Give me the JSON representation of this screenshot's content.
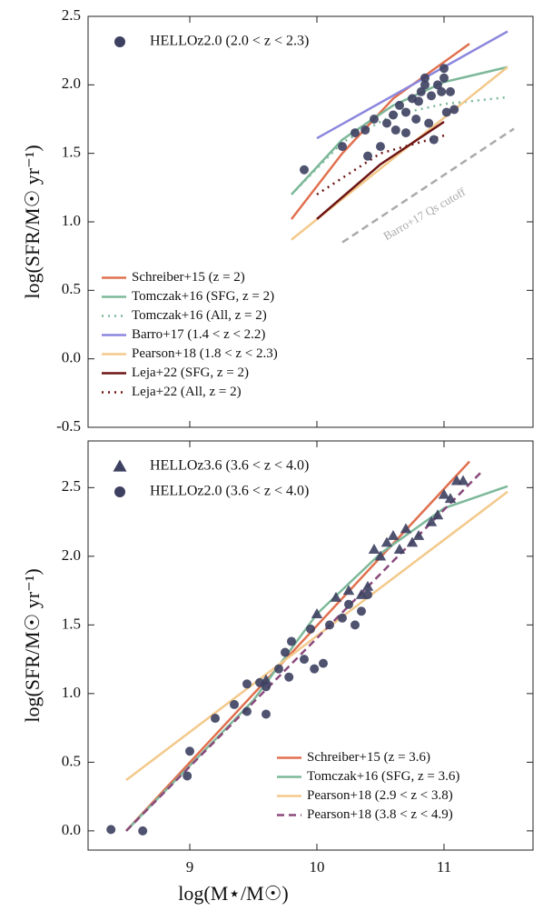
{
  "chart_data": [
    {
      "type": "line",
      "ylabel": "log(SFR/M☉ yr⁻¹)",
      "xlim": [
        8.2,
        11.7
      ],
      "ylim": [
        -0.5,
        2.5
      ],
      "xticks": [
        9,
        10,
        11
      ],
      "yticks": [
        -0.5,
        {
          "value": 0,
          "label": "0.0"
        },
        0.5,
        {
          "value": 1,
          "label": "1.0"
        },
        1.5,
        {
          "value": 2,
          "label": "2.0"
        },
        2.5
      ],
      "annotation": "Barro+17 Qs cutoff",
      "series": [
        {
          "name": "HELLOz2.0 (2.0 < z < 2.3)",
          "type": "scatter",
          "marker": "circle",
          "color": "#3d4060",
          "legend_loc": "upper left",
          "x": [
            9.9,
            10.2,
            10.3,
            10.38,
            10.45,
            10.5,
            10.55,
            10.6,
            10.62,
            10.65,
            10.7,
            10.75,
            10.78,
            10.8,
            10.82,
            10.85,
            10.88,
            10.9,
            10.92,
            10.95,
            10.98,
            11.0,
            11.02,
            11.05,
            11.08,
            10.7,
            10.4,
            10.85,
            11.0
          ],
          "values": [
            1.38,
            1.55,
            1.65,
            1.67,
            1.75,
            1.55,
            1.72,
            1.78,
            1.67,
            1.85,
            1.8,
            1.9,
            1.75,
            1.88,
            1.95,
            2.0,
            1.72,
            1.92,
            1.6,
            2.0,
            1.95,
            2.05,
            1.8,
            1.95,
            1.82,
            1.65,
            1.48,
            2.05,
            2.12
          ]
        },
        {
          "name": "Schreiber+15 (z = 2)",
          "type": "line",
          "linestyle": "solid",
          "color": "#e0704f",
          "legend_loc": "lower left",
          "x": [
            9.8,
            10.2,
            10.6,
            11.2
          ],
          "values": [
            1.02,
            1.5,
            1.9,
            2.3
          ]
        },
        {
          "name": "Tomczak+16 (SFG, z = 2)",
          "type": "line",
          "linestyle": "solid",
          "color": "#7cb899",
          "legend_loc": "lower left",
          "x": [
            9.8,
            10.2,
            10.6,
            11.0,
            11.5
          ],
          "values": [
            1.2,
            1.6,
            1.85,
            2.02,
            2.13
          ]
        },
        {
          "name": "Tomczak+16 (All, z = 2)",
          "type": "line",
          "linestyle": "dotted",
          "color": "#7cb899",
          "legend_loc": "lower left",
          "x": [
            9.8,
            10.2,
            10.6,
            11.0,
            11.5
          ],
          "values": [
            1.2,
            1.58,
            1.78,
            1.86,
            1.91
          ]
        },
        {
          "name": "Barro+17 (1.4 < z < 2.2)",
          "type": "line",
          "linestyle": "solid",
          "color": "#8b86dd",
          "legend_loc": "lower left",
          "x": [
            10.0,
            11.5
          ],
          "values": [
            1.61,
            2.39
          ]
        },
        {
          "name": "Pearson+18 (1.8 < z < 2.3)",
          "type": "line",
          "linestyle": "solid",
          "color": "#f3c98b",
          "legend_loc": "lower left",
          "x": [
            9.8,
            11.5
          ],
          "values": [
            0.87,
            2.13
          ]
        },
        {
          "name": "Leja+22 (SFG, z = 2)",
          "type": "line",
          "linestyle": "solid",
          "color": "#6e1414",
          "legend_loc": "lower left",
          "x": [
            10.0,
            10.5,
            11.0
          ],
          "values": [
            1.02,
            1.42,
            1.73
          ]
        },
        {
          "name": "Leja+22 (All, z = 2)",
          "type": "line",
          "linestyle": "dotted",
          "color": "#6e1414",
          "legend_loc": "lower left",
          "x": [
            10.0,
            10.5,
            11.0
          ],
          "values": [
            1.2,
            1.5,
            1.63
          ]
        },
        {
          "type": "line",
          "linestyle": "dashed",
          "color": "#aaaaaa",
          "x": [
            10.2,
            11.55
          ],
          "values": [
            0.85,
            1.68
          ]
        }
      ]
    },
    {
      "type": "line",
      "xlabel": "log(M⋆/M☉)",
      "ylabel": "log(SFR/M☉ yr⁻¹)",
      "xlim": [
        8.2,
        11.7
      ],
      "ylim": [
        -0.14,
        2.84
      ],
      "xticks": [
        9,
        10,
        11
      ],
      "yticks": [
        {
          "value": 0,
          "label": "0.0"
        },
        0.5,
        {
          "value": 1,
          "label": "1.0"
        },
        1.5,
        {
          "value": 2,
          "label": "2.0"
        },
        2.5
      ],
      "series": [
        {
          "name": "HELLOz3.6 (3.6 < z < 4.0)",
          "type": "scatter",
          "marker": "triangle",
          "color": "#3d4060",
          "legend_loc": "upper left",
          "x": [
            9.6,
            10.0,
            10.15,
            10.25,
            10.35,
            10.4,
            10.45,
            10.5,
            10.55,
            10.6,
            10.65,
            10.7,
            10.75,
            10.8,
            10.9,
            10.95,
            11.0,
            11.05,
            11.1,
            11.15
          ],
          "values": [
            1.1,
            1.58,
            1.7,
            1.75,
            1.72,
            1.78,
            2.05,
            2.0,
            2.1,
            2.15,
            2.05,
            2.2,
            2.1,
            2.15,
            2.25,
            2.3,
            2.45,
            2.42,
            2.55,
            2.55
          ]
        },
        {
          "name": "HELLOz2.0 (3.6 < z < 4.0)",
          "type": "scatter",
          "marker": "circle",
          "color": "#3d4060",
          "legend_loc": "upper left",
          "x": [
            8.38,
            8.63,
            8.98,
            9.0,
            9.2,
            9.35,
            9.45,
            9.45,
            9.55,
            9.6,
            9.7,
            9.75,
            9.8,
            9.78,
            9.9,
            9.95,
            9.98,
            10.05,
            10.1,
            10.2,
            10.25,
            10.3,
            10.35,
            10.4,
            9.6
          ],
          "values": [
            0.01,
            0.0,
            0.4,
            0.58,
            0.82,
            0.92,
            1.07,
            0.87,
            1.08,
            1.05,
            1.18,
            1.3,
            1.38,
            1.12,
            1.25,
            1.47,
            1.18,
            1.22,
            1.5,
            1.55,
            1.65,
            1.5,
            1.6,
            1.72,
            0.85
          ]
        },
        {
          "name": "Schreiber+15 (z = 3.6)",
          "type": "line",
          "linestyle": "solid",
          "color": "#e0704f",
          "legend_loc": "lower right",
          "x": [
            8.5,
            11.2
          ],
          "values": [
            0.0,
            2.69
          ]
        },
        {
          "name": "Tomczak+16 (SFG, z = 3.6)",
          "type": "line",
          "linestyle": "solid",
          "color": "#7cb899",
          "legend_loc": "lower right",
          "x": [
            8.5,
            9.5,
            10.0,
            10.5,
            11.0,
            11.5
          ],
          "values": [
            0.0,
            0.95,
            1.58,
            2.02,
            2.35,
            2.51
          ]
        },
        {
          "name": "Pearson+18 (2.9 < z < 3.8)",
          "type": "line",
          "linestyle": "solid",
          "color": "#f3c98b",
          "legend_loc": "lower right",
          "x": [
            8.5,
            11.5
          ],
          "values": [
            0.37,
            2.47
          ]
        },
        {
          "name": "Pearson+18 (3.8 < z < 4.9)",
          "type": "line",
          "linestyle": "dashed",
          "color": "#8a4a7c",
          "legend_loc": "lower right",
          "x": [
            8.5,
            11.3
          ],
          "values": [
            0.0,
            2.62
          ]
        }
      ]
    }
  ]
}
